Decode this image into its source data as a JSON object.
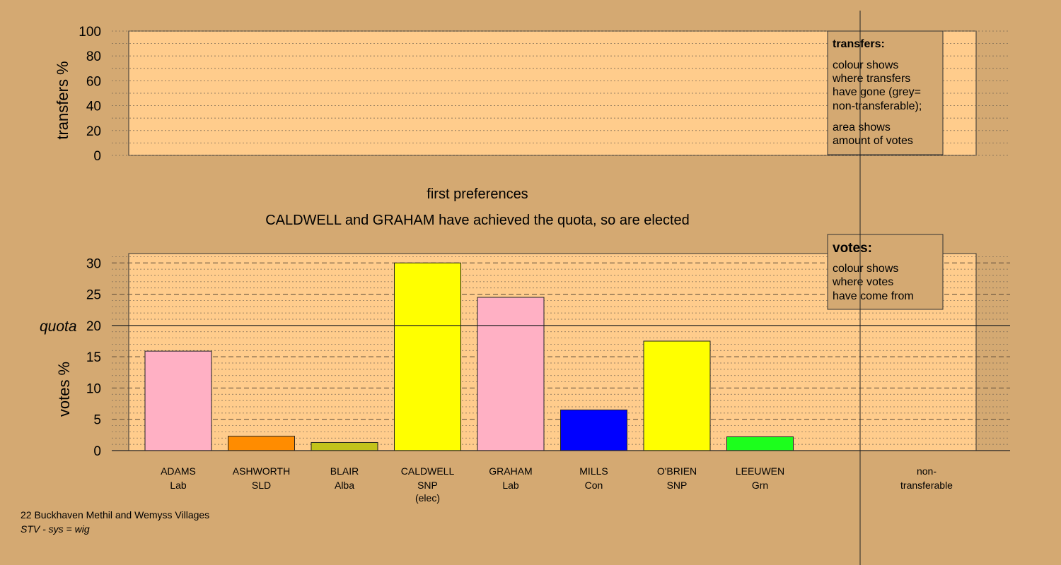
{
  "colors": {
    "background": "#d4a972",
    "panel": "#ffcc8c",
    "legend_box": "#d4a972",
    "Lab": "#ffb0c4",
    "SLD": "#ff8c00",
    "Alba": "#c3c31a",
    "SNP": "#ffff00",
    "Con": "#0000ff",
    "Grn": "#1cff1c"
  },
  "top_panel": {
    "ylabel": "transfers %",
    "yticks": [
      "0",
      "20",
      "40",
      "60",
      "80",
      "100"
    ],
    "legend": {
      "title": "transfers:",
      "line1": "colour shows",
      "line2": "where transfers",
      "line3": "have gone (grey=",
      "line4": "non-transferable);",
      "line5": "area shows",
      "line6": "amount of votes"
    }
  },
  "stage_label": "first preferences",
  "status_message": "CALDWELL and GRAHAM have achieved the quota, so are elected",
  "bottom_panel": {
    "legend": {
      "title": "votes:",
      "line1": "colour shows",
      "line2": "where votes",
      "line3": "have come from"
    },
    "quota_label": "quota"
  },
  "chart_data": [
    {
      "type": "bar",
      "ylabel": "transfers %",
      "ylim": [
        0,
        100
      ],
      "yticks": [
        0,
        20,
        40,
        60,
        80,
        100
      ],
      "values": [],
      "grid": true
    },
    {
      "type": "bar",
      "title": "first preferences",
      "subtitle": "CALDWELL and GRAHAM have achieved the quota, so are elected",
      "ylabel": "votes %",
      "ylim": [
        0,
        31.5
      ],
      "yticks": [
        0,
        5,
        10,
        15,
        20,
        25,
        30
      ],
      "quota": 20,
      "grid": true,
      "candidates": [
        {
          "name": "ADAMS",
          "party": "Lab",
          "note": "",
          "value": 15.9
        },
        {
          "name": "ASHWORTH",
          "party": "SLD",
          "note": "",
          "value": 2.3
        },
        {
          "name": "BLAIR",
          "party": "Alba",
          "note": "",
          "value": 1.3
        },
        {
          "name": "CALDWELL",
          "party": "SNP",
          "note": "(elec)",
          "value": 30.0
        },
        {
          "name": "GRAHAM",
          "party": "Lab",
          "note": "",
          "value": 24.5
        },
        {
          "name": "MILLS",
          "party": "Con",
          "note": "",
          "value": 6.5
        },
        {
          "name": "O'BRIEN",
          "party": "SNP",
          "note": "",
          "value": 17.5
        },
        {
          "name": "LEEUWEN",
          "party": "Grn",
          "note": "",
          "value": 2.2
        }
      ],
      "non_transferable": {
        "line1": "non-",
        "line2": "transferable",
        "value": 0
      }
    }
  ],
  "footer": {
    "ward": "22 Buckhaven Methil and Wemyss Villages",
    "system": "STV - sys = wig"
  }
}
